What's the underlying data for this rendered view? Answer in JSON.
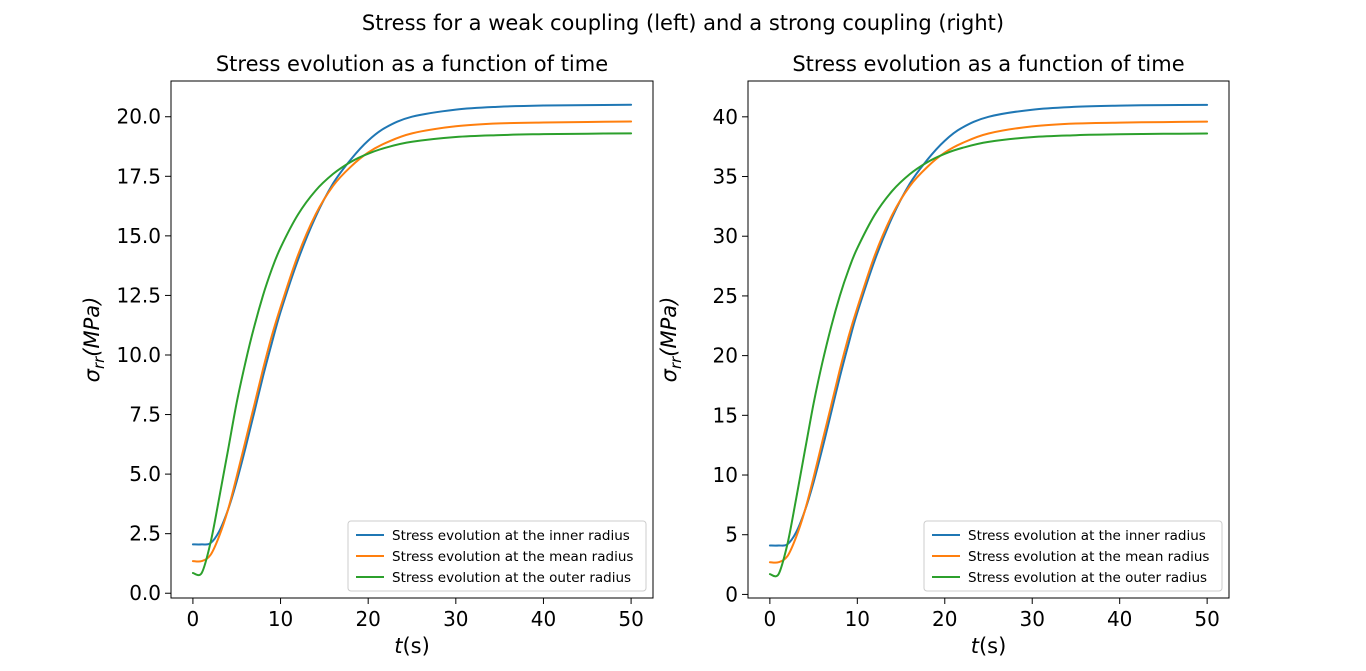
{
  "figure": {
    "suptitle": "Stress for a weak coupling (left) and a strong coupling (right)"
  },
  "chart_data": [
    {
      "type": "line",
      "title": "Stress evolution as a function of time",
      "xlabel_var": "t",
      "xlabel_unit": "(s)",
      "ylabel_var": "σ",
      "ylabel_sub": "rr",
      "ylabel_unit": "(MPa)",
      "xlim": [
        -2.5,
        52.5
      ],
      "ylim": [
        -0.2,
        21.5
      ],
      "xticks": [
        0,
        10,
        20,
        30,
        40,
        50
      ],
      "xtick_labels": [
        "0",
        "10",
        "20",
        "30",
        "40",
        "50"
      ],
      "yticks": [
        0,
        2.5,
        5,
        7.5,
        10,
        12.5,
        15,
        17.5,
        20
      ],
      "ytick_labels": [
        "0.0",
        "2.5",
        "5.0",
        "7.5",
        "10.0",
        "12.5",
        "15.0",
        "17.5",
        "20.0"
      ],
      "grid": false,
      "legend_position": "lower-right",
      "x": [
        0,
        1,
        2,
        3,
        4,
        5,
        6,
        7,
        8,
        9,
        10,
        12,
        14,
        16,
        18,
        20,
        22,
        25,
        30,
        35,
        40,
        45,
        50
      ],
      "series": [
        {
          "name": "Stress evolution at the inner radius",
          "color": "#1f77b4",
          "values": [
            2.05,
            2.05,
            2.1,
            2.6,
            3.5,
            4.7,
            6.1,
            7.6,
            9.1,
            10.5,
            11.8,
            14.0,
            15.8,
            17.2,
            18.2,
            19.0,
            19.55,
            20.0,
            20.3,
            20.42,
            20.47,
            20.49,
            20.5
          ]
        },
        {
          "name": "Stress evolution at the mean radius",
          "color": "#ff7f0e",
          "values": [
            1.35,
            1.35,
            1.6,
            2.4,
            3.5,
            4.9,
            6.4,
            7.9,
            9.4,
            10.8,
            12.0,
            14.2,
            15.9,
            17.1,
            17.9,
            18.5,
            18.9,
            19.3,
            19.6,
            19.72,
            19.76,
            19.78,
            19.8
          ]
        },
        {
          "name": "Stress evolution at the outer radius",
          "color": "#2ca02c",
          "values": [
            0.85,
            0.85,
            2.1,
            4.0,
            6.0,
            8.0,
            9.7,
            11.2,
            12.5,
            13.6,
            14.5,
            15.9,
            16.9,
            17.6,
            18.1,
            18.45,
            18.7,
            18.95,
            19.15,
            19.23,
            19.27,
            19.29,
            19.3
          ]
        }
      ]
    },
    {
      "type": "line",
      "title": "Stress evolution as a function of time",
      "xlabel_var": "t",
      "xlabel_unit": "(s)",
      "ylabel_var": "σ",
      "ylabel_sub": "rr",
      "ylabel_unit": "(MPa)",
      "xlim": [
        -2.5,
        52.5
      ],
      "ylim": [
        -0.3,
        43.0
      ],
      "xticks": [
        0,
        10,
        20,
        30,
        40,
        50
      ],
      "xtick_labels": [
        "0",
        "10",
        "20",
        "30",
        "40",
        "50"
      ],
      "yticks": [
        0,
        5,
        10,
        15,
        20,
        25,
        30,
        35,
        40
      ],
      "ytick_labels": [
        "0",
        "5",
        "10",
        "15",
        "20",
        "25",
        "30",
        "35",
        "40"
      ],
      "grid": false,
      "legend_position": "lower-right",
      "x": [
        0,
        1,
        2,
        3,
        4,
        5,
        6,
        7,
        8,
        9,
        10,
        12,
        14,
        16,
        18,
        20,
        22,
        25,
        30,
        35,
        40,
        45,
        50
      ],
      "series": [
        {
          "name": "Stress evolution at the inner radius",
          "color": "#1f77b4",
          "values": [
            4.1,
            4.1,
            4.2,
            5.2,
            7.0,
            9.4,
            12.2,
            15.2,
            18.2,
            21.0,
            23.6,
            28.0,
            31.6,
            34.4,
            36.4,
            38.0,
            39.1,
            40.0,
            40.6,
            40.84,
            40.94,
            40.98,
            41.0
          ]
        },
        {
          "name": "Stress evolution at the mean radius",
          "color": "#ff7f0e",
          "values": [
            2.7,
            2.7,
            3.2,
            4.8,
            7.0,
            9.8,
            12.8,
            15.8,
            18.8,
            21.6,
            24.0,
            28.4,
            31.8,
            34.2,
            35.8,
            37.0,
            37.8,
            38.6,
            39.2,
            39.44,
            39.52,
            39.56,
            39.6
          ]
        },
        {
          "name": "Stress evolution at the outer radius",
          "color": "#2ca02c",
          "values": [
            1.7,
            1.7,
            4.2,
            8.0,
            12.0,
            16.0,
            19.4,
            22.4,
            25.0,
            27.2,
            29.0,
            31.8,
            33.8,
            35.2,
            36.2,
            36.9,
            37.4,
            37.9,
            38.3,
            38.46,
            38.54,
            38.58,
            38.6
          ]
        }
      ]
    }
  ]
}
